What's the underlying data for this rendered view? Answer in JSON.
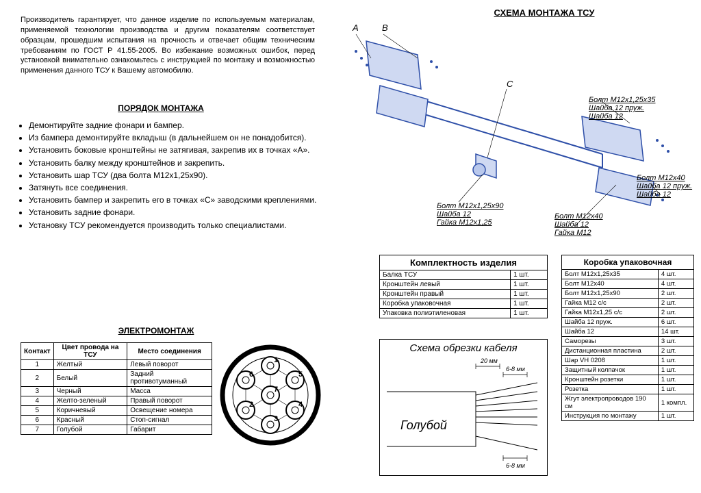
{
  "intro": "Производитель гарантирует, что данное изделие по используемым материалам, применяемой технологии производства и другим показателям соответствует образцам, прошедшим испытания на прочность и отвечает общим техническим требованиям по ГОСТ Р 41.55-2005. Во избежание возможных ошибок, перед установкой внимательно ознакомьтесь с инструкцией по монтажу и возможностью применения данного ТСУ к Вашему автомобилю.",
  "headings": {
    "schema": "СХЕМА МОНТАЖА ТСУ",
    "order": "ПОРЯДОК МОНТАЖА",
    "electro": "ЭЛЕКТРОМОНТАЖ",
    "complect": "Комплектность изделия",
    "box": "Коробка упаковочная",
    "cable": "Схема обрезки кабеля"
  },
  "steps": [
    "Демонтируйте задние фонари и бампер.",
    "Из бампера демонтируйте вкладыш (в дальнейшем он не понадобится).",
    "Установить боковые кронштейны не затягивая, закрепив их в точках «А».",
    "Установить балку между кронштейнов и закрепить.",
    "Установить шар ТСУ (два болта М12х1,25х90).",
    "Затянуть все соединения.",
    "Установить бампер и закрепить его в точках «С» заводскими креплениями.",
    "Установить задние фонари.",
    "Установку ТСУ рекомендуется производить только специалистами."
  ],
  "wiring": {
    "headers": [
      "Контакт",
      "Цвет провода на ТСУ",
      "Место соединения"
    ],
    "rows": [
      [
        "1",
        "Желтый",
        "Левый поворот"
      ],
      [
        "2",
        "Белый",
        "Задний противотуманный"
      ],
      [
        "3",
        "Черный",
        "Масса"
      ],
      [
        "4",
        "Желто-зеленый",
        "Правый поворот"
      ],
      [
        "5",
        "Коричневый",
        "Освещение номера"
      ],
      [
        "6",
        "Красный",
        "Стоп-сигнал"
      ],
      [
        "7",
        "Голубой",
        "Габарит"
      ]
    ]
  },
  "complect": {
    "rows": [
      [
        "Балка ТСУ",
        "1 шт."
      ],
      [
        "Кронштейн левый",
        "1 шт."
      ],
      [
        "Кронштейн правый",
        "1 шт."
      ],
      [
        "Коробка упаковочная",
        "1 шт."
      ],
      [
        "Упаковка полиэтиленовая",
        "1 шт."
      ]
    ]
  },
  "box": {
    "rows": [
      [
        "Болт М12х1,25х35",
        "4 шт."
      ],
      [
        "Болт М12х40",
        "4 шт."
      ],
      [
        "Болт М12х1,25х90",
        "2 шт."
      ],
      [
        "Гайка М12 с/с",
        "2 шт."
      ],
      [
        "Гайка М12х1,25 с/с",
        "2 шт."
      ],
      [
        "Шайба 12 пруж.",
        "6 шт."
      ],
      [
        "Шайба 12",
        "14 шт."
      ],
      [
        "Саморезы",
        "3 шт."
      ],
      [
        "Дистанционная пластина",
        "2 шт."
      ],
      [
        "Шар VH 0208",
        "1 шт."
      ],
      [
        "Защитный колпачок",
        "1 шт."
      ],
      [
        "Кронштейн розетки",
        "1 шт."
      ],
      [
        "Розетка",
        "1 шт."
      ],
      [
        "Жгут электропроводов 190 см",
        "1 компл."
      ],
      [
        "Инструкция по монтажу",
        "1 шт."
      ]
    ]
  },
  "callouts": {
    "a": "А",
    "b": "В",
    "c": "С",
    "g1": [
      "Болт М12х1,25х35",
      "Шайба 12 пруж.",
      "Шайба 12"
    ],
    "g2": [
      "Болт М12х1,25х90",
      "Шайба 12",
      "Гайка М12х1,25"
    ],
    "g3": [
      "Болт М12х40",
      "Шайба 12",
      "Гайка М12"
    ],
    "g4": [
      "Болт М12х40",
      "Шайба 12 пруж.",
      "Шайба 12"
    ]
  },
  "cable": {
    "dim1": "20 мм",
    "dim2": "6-8 мм",
    "dim3": "6-8 мм",
    "label": "Голубой"
  },
  "colors": {
    "diagram": "#5b7bd5",
    "bolt": "#2e4fa8",
    "text": "#000000",
    "line": "#000000"
  }
}
